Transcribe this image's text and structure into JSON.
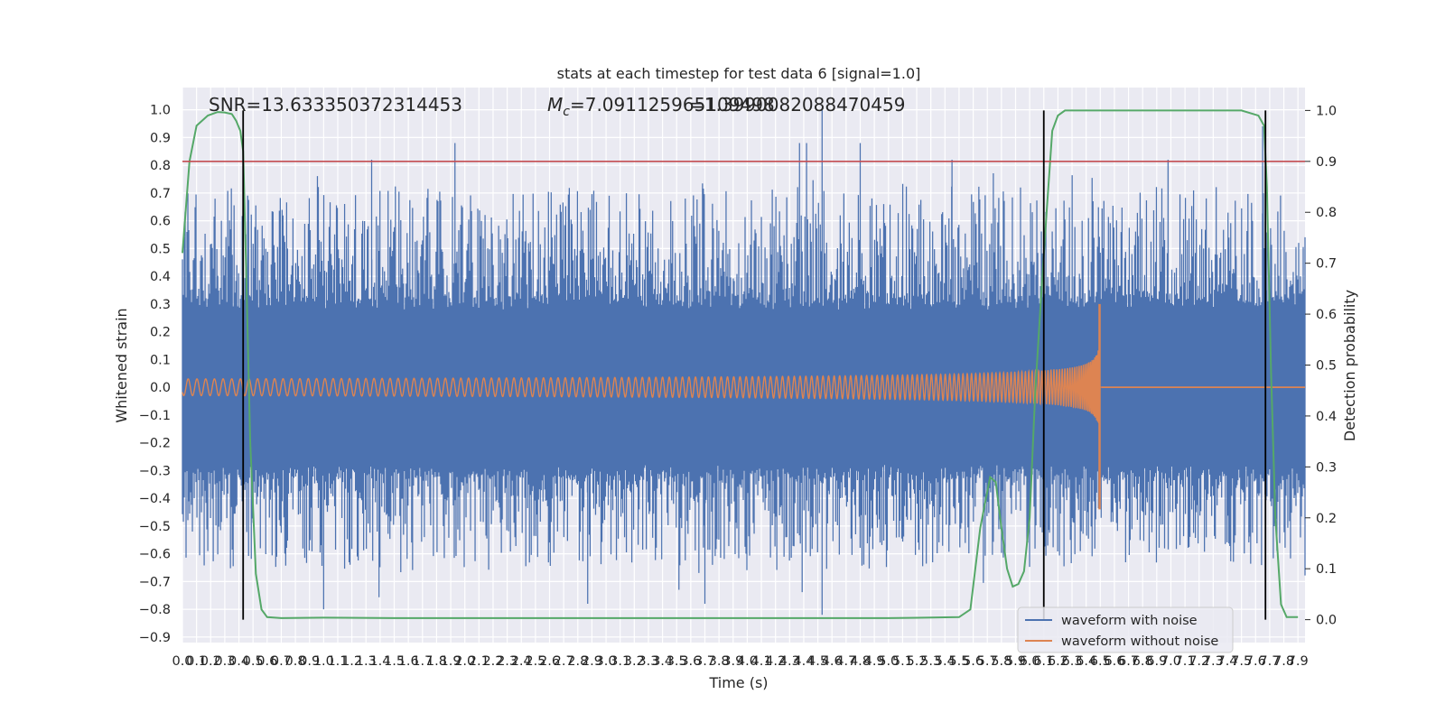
{
  "chart_data": {
    "type": "line",
    "title": "stats at each timestep for test data 6 [signal=1.0]",
    "xlabel": "Time (s)",
    "ylabel": "Whitened strain",
    "y2label": "Detection probability",
    "xlim": [
      0.0,
      7.95
    ],
    "ylim": [
      -0.92,
      1.08
    ],
    "y2lim": [
      -0.045,
      1.045
    ],
    "grid": true,
    "legend_position": "bottom-right",
    "x_tick_labels": [
      "0.0",
      "0.1",
      "0.2",
      "0.3",
      "0.4",
      "0.5",
      "0.6",
      "0.7",
      "0.8",
      "0.9",
      "1.0",
      "1.1",
      "1.2",
      "1.3",
      "1.4",
      "1.5",
      "1.6",
      "1.7",
      "1.8",
      "1.9",
      "2.0",
      "2.1",
      "2.2",
      "2.3",
      "2.4",
      "2.5",
      "2.6",
      "2.7",
      "2.8",
      "2.9",
      "3.0",
      "3.1",
      "3.2",
      "3.3",
      "3.4",
      "3.5",
      "3.6",
      "3.7",
      "3.8",
      "3.9",
      "4.0",
      "4.1",
      "4.2",
      "4.3",
      "4.4",
      "4.5",
      "4.6",
      "4.7",
      "4.8",
      "4.9",
      "5.0",
      "5.1",
      "5.2",
      "5.3",
      "5.4",
      "5.5",
      "5.6",
      "5.7",
      "5.8",
      "5.9",
      "6.0",
      "6.1",
      "6.2",
      "6.3",
      "6.4",
      "6.5",
      "6.6",
      "6.7",
      "6.8",
      "6.9",
      "7.0",
      "7.1",
      "7.2",
      "7.3",
      "7.4",
      "7.5",
      "7.6",
      "7.7",
      "7.8",
      "7.9"
    ],
    "y_ticks": [
      -0.9,
      -0.8,
      -0.7,
      -0.6,
      -0.5,
      -0.4,
      -0.3,
      -0.2,
      -0.1,
      0.0,
      0.1,
      0.2,
      0.3,
      0.4,
      0.5,
      0.6,
      0.7,
      0.8,
      0.9,
      1.0
    ],
    "y_tick_labels": [
      "−0.9",
      "−0.8",
      "−0.7",
      "−0.6",
      "−0.5",
      "−0.4",
      "−0.3",
      "−0.2",
      "−0.1",
      "0.0",
      "0.1",
      "0.2",
      "0.3",
      "0.4",
      "0.5",
      "0.6",
      "0.7",
      "0.8",
      "0.9",
      "1.0"
    ],
    "y2_ticks": [
      0.0,
      0.1,
      0.2,
      0.3,
      0.4,
      0.5,
      0.6,
      0.7,
      0.8,
      0.9,
      1.0
    ],
    "y2_tick_labels": [
      "0.0",
      "0.1",
      "0.2",
      "0.3",
      "0.4",
      "0.5",
      "0.6",
      "0.7",
      "0.8",
      "0.9",
      "1.0"
    ],
    "annotations": {
      "snr": "SNR=13.633350372314453",
      "mc_symbol": "M",
      "mc_subscript": "c",
      "mc_value": "=7.091125965109498",
      "q_text": "=1.3990082088470459"
    },
    "threshold_y2": 0.9,
    "vertical_lines_x": [
      0.43,
      6.1,
      7.67
    ],
    "series": [
      {
        "name": "waveform with noise",
        "color": "#4c72b0",
        "envelope_approx": {
          "typical_positive_peak": 0.5,
          "typical_negative_peak": -0.45,
          "max": 1.0,
          "min": -0.82,
          "spikes": [
            [
              1.34,
              0.82
            ],
            [
              1.93,
              0.88
            ],
            [
              4.37,
              0.88
            ],
            [
              4.42,
              0.88
            ],
            [
              4.53,
              1.0
            ],
            [
              4.53,
              -0.82
            ],
            [
              4.8,
              0.88
            ],
            [
              5.45,
              0.82
            ],
            [
              6.98,
              0.82
            ],
            [
              7.65,
              0.94
            ],
            [
              1.0,
              -0.8
            ],
            [
              2.87,
              -0.78
            ],
            [
              3.7,
              -0.78
            ]
          ]
        }
      },
      {
        "name": "waveform without noise",
        "color": "#dd8452",
        "chirp": {
          "start_amplitude": 0.03,
          "merger_time": 6.5,
          "merger_peak_max": 0.3,
          "merger_peak_min": -0.44,
          "post_merger_value": 0.0
        }
      },
      {
        "name": "",
        "axis": "right",
        "color": "#55a868",
        "x": [
          0.0,
          0.05,
          0.1,
          0.18,
          0.25,
          0.3,
          0.35,
          0.38,
          0.41,
          0.43,
          0.45,
          0.48,
          0.52,
          0.56,
          0.6,
          0.7,
          1.0,
          1.5,
          2.0,
          3.0,
          4.0,
          5.0,
          5.5,
          5.58,
          5.65,
          5.72,
          5.76,
          5.8,
          5.84,
          5.88,
          5.92,
          5.96,
          6.0,
          6.04,
          6.08,
          6.12,
          6.16,
          6.2,
          6.25,
          6.3,
          6.5,
          7.0,
          7.5,
          7.62,
          7.66,
          7.68,
          7.71,
          7.74,
          7.78,
          7.82,
          7.9
        ],
        "y": [
          0.72,
          0.9,
          0.97,
          0.99,
          0.997,
          0.996,
          0.993,
          0.98,
          0.96,
          0.92,
          0.7,
          0.35,
          0.09,
          0.02,
          0.005,
          0.003,
          0.004,
          0.003,
          0.003,
          0.003,
          0.003,
          0.003,
          0.005,
          0.02,
          0.18,
          0.28,
          0.27,
          0.18,
          0.1,
          0.065,
          0.07,
          0.095,
          0.2,
          0.45,
          0.63,
          0.8,
          0.96,
          0.99,
          1.0,
          1.0,
          1.0,
          1.0,
          1.0,
          0.99,
          0.97,
          0.85,
          0.48,
          0.2,
          0.03,
          0.005,
          0.005
        ]
      },
      {
        "name": "",
        "axis": "right",
        "color": "#c44e52",
        "type": "hline",
        "y": 0.9
      }
    ]
  }
}
